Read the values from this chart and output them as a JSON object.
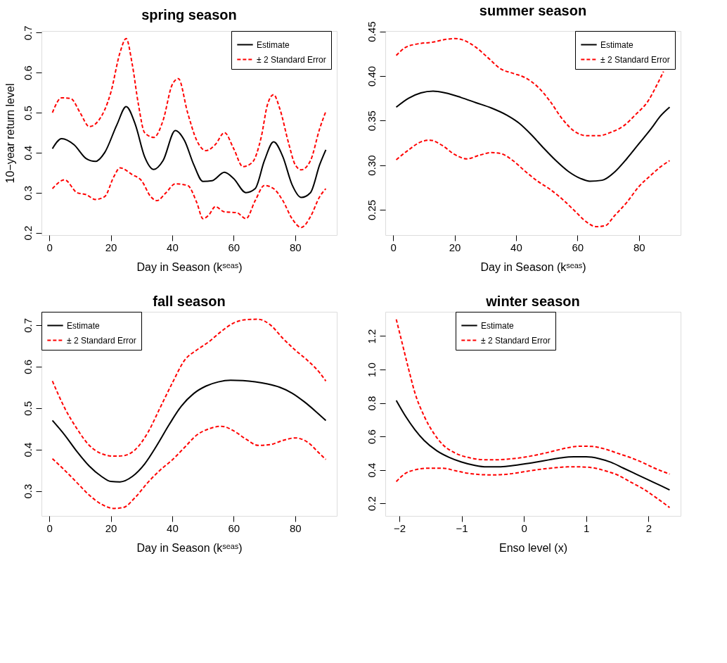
{
  "chart_data": [
    {
      "type": "line",
      "title": "spring season",
      "xlabel": "Day in Season (kˢᵉᵃˢ)",
      "ylabel": "10−year return level",
      "xlim": [
        -2.56,
        93.56
      ],
      "ylim": [
        0.194,
        0.704
      ],
      "xticks": [
        0,
        20,
        40,
        60,
        80
      ],
      "yticks": [
        0.2,
        0.3,
        0.4,
        0.5,
        0.6,
        0.7
      ],
      "legend": "top right",
      "grid": false,
      "series": [
        {
          "name": "Estimate",
          "color": "#000000",
          "line_style": "solid",
          "x": [
            1,
            4,
            8,
            12,
            15,
            18,
            22,
            25,
            28,
            31,
            34,
            37,
            41,
            44,
            47,
            50,
            53,
            57,
            60,
            64,
            67,
            70,
            73,
            76,
            79,
            82,
            85,
            88,
            90
          ],
          "values": [
            0.41,
            0.435,
            0.42,
            0.385,
            0.378,
            0.4,
            0.47,
            0.515,
            0.47,
            0.39,
            0.358,
            0.38,
            0.455,
            0.43,
            0.37,
            0.328,
            0.33,
            0.351,
            0.335,
            0.3,
            0.31,
            0.38,
            0.427,
            0.39,
            0.32,
            0.288,
            0.3,
            0.37,
            0.407
          ]
        },
        {
          "name": "± 2 Standard Error",
          "color": "#ff0000",
          "line_style": "dashed",
          "x": [
            1,
            4,
            7,
            10,
            13,
            16,
            20,
            23,
            25,
            27,
            29,
            31,
            34,
            37,
            40,
            42,
            45,
            48,
            51,
            54,
            57,
            60,
            63,
            66,
            69,
            71,
            73,
            75,
            78,
            80,
            82,
            85,
            88,
            90
          ],
          "values": [
            0.5,
            0.537,
            0.535,
            0.5,
            0.465,
            0.48,
            0.55,
            0.65,
            0.685,
            0.62,
            0.52,
            0.45,
            0.438,
            0.48,
            0.57,
            0.585,
            0.5,
            0.43,
            0.405,
            0.42,
            0.45,
            0.41,
            0.365,
            0.375,
            0.44,
            0.52,
            0.545,
            0.51,
            0.42,
            0.37,
            0.357,
            0.38,
            0.46,
            0.503
          ]
        },
        {
          "color": "#ff0000",
          "line_style": "dashed",
          "x": [
            1,
            5,
            9,
            12,
            15,
            18,
            21,
            23,
            27,
            30,
            33,
            35,
            38,
            41,
            45,
            48,
            50,
            52,
            54,
            57,
            61,
            64,
            67,
            70,
            73,
            76,
            79,
            82,
            85,
            88,
            90
          ],
          "values": [
            0.31,
            0.332,
            0.3,
            0.295,
            0.283,
            0.29,
            0.34,
            0.362,
            0.345,
            0.33,
            0.29,
            0.28,
            0.3,
            0.322,
            0.318,
            0.275,
            0.235,
            0.245,
            0.265,
            0.252,
            0.25,
            0.235,
            0.28,
            0.318,
            0.31,
            0.28,
            0.235,
            0.213,
            0.24,
            0.29,
            0.31
          ]
        }
      ]
    },
    {
      "type": "line",
      "title": "summer season",
      "xlabel": "Day in Season (kˢᵉᵃˢ)",
      "xlim": [
        -2.56,
        93.56
      ],
      "ylim": [
        0.2215,
        0.4505
      ],
      "xticks": [
        0,
        20,
        40,
        60,
        80
      ],
      "yticks": [
        0.25,
        {
          "value": 0.3,
          "label": "0.30"
        },
        0.35,
        {
          "value": 0.4,
          "label": "0.40"
        },
        0.45
      ],
      "legend": "top right",
      "grid": false,
      "series": [
        {
          "name": "Estimate",
          "color": "#000000",
          "line_style": "solid",
          "x": [
            1,
            5,
            9,
            13,
            17,
            22,
            27,
            32,
            37,
            41,
            45,
            49,
            53,
            57,
            61,
            64,
            68,
            72,
            76,
            80,
            84,
            87,
            90
          ],
          "values": [
            0.365,
            0.375,
            0.381,
            0.383,
            0.381,
            0.376,
            0.37,
            0.364,
            0.356,
            0.347,
            0.334,
            0.319,
            0.305,
            0.293,
            0.285,
            0.282,
            0.283,
            0.292,
            0.307,
            0.324,
            0.341,
            0.355,
            0.365
          ]
        },
        {
          "name": "± 2 Standard Error",
          "color": "#ff0000",
          "line_style": "dashed",
          "x": [
            1,
            4,
            8,
            13,
            17,
            20,
            23,
            27,
            31,
            35,
            39,
            43,
            47,
            51,
            55,
            59,
            63,
            67,
            71,
            75,
            79,
            83,
            86,
            88
          ],
          "values": [
            0.423,
            0.432,
            0.436,
            0.438,
            0.441,
            0.442,
            0.44,
            0.432,
            0.42,
            0.408,
            0.403,
            0.398,
            0.388,
            0.372,
            0.352,
            0.338,
            0.333,
            0.333,
            0.337,
            0.344,
            0.357,
            0.372,
            0.391,
            0.405
          ]
        },
        {
          "color": "#ff0000",
          "line_style": "dashed",
          "x": [
            1,
            5,
            9,
            12,
            16,
            20,
            24,
            28,
            32,
            35,
            39,
            43,
            47,
            51,
            55,
            59,
            63,
            66,
            69,
            72,
            76,
            80,
            84,
            87,
            90
          ],
          "values": [
            0.306,
            0.317,
            0.326,
            0.328,
            0.322,
            0.312,
            0.307,
            0.311,
            0.314,
            0.313,
            0.305,
            0.293,
            0.282,
            0.273,
            0.262,
            0.249,
            0.236,
            0.231,
            0.232,
            0.243,
            0.258,
            0.276,
            0.289,
            0.298,
            0.305
          ]
        }
      ]
    },
    {
      "type": "line",
      "title": "fall season",
      "xlabel": "Day in Season (kˢᵉᵃˢ)",
      "xlim": [
        -2.56,
        93.56
      ],
      "ylim": [
        0.24,
        0.732
      ],
      "xticks": [
        0,
        20,
        40,
        60,
        80
      ],
      "yticks": [
        0.3,
        0.4,
        0.5,
        0.6,
        0.7
      ],
      "legend": "top left",
      "grid": false,
      "series": [
        {
          "name": "Estimate",
          "color": "#000000",
          "line_style": "solid",
          "x": [
            1,
            5,
            9,
            13,
            17,
            20,
            23,
            27,
            31,
            35,
            39,
            43,
            47,
            51,
            55,
            59,
            63,
            67,
            71,
            75,
            79,
            83,
            87,
            90
          ],
          "values": [
            0.47,
            0.435,
            0.395,
            0.36,
            0.335,
            0.323,
            0.322,
            0.335,
            0.365,
            0.41,
            0.46,
            0.505,
            0.535,
            0.553,
            0.563,
            0.567,
            0.566,
            0.563,
            0.558,
            0.55,
            0.536,
            0.515,
            0.49,
            0.47
          ]
        },
        {
          "name": "± 2 Standard Error",
          "color": "#ff0000",
          "line_style": "dashed",
          "x": [
            1,
            5,
            9,
            13,
            17,
            21,
            24,
            28,
            32,
            36,
            40,
            44,
            48,
            52,
            56,
            60,
            64,
            68,
            72,
            76,
            80,
            84,
            88,
            90
          ],
          "values": [
            0.565,
            0.5,
            0.45,
            0.41,
            0.39,
            0.384,
            0.385,
            0.4,
            0.44,
            0.5,
            0.56,
            0.615,
            0.64,
            0.66,
            0.685,
            0.705,
            0.713,
            0.714,
            0.7,
            0.668,
            0.64,
            0.615,
            0.585,
            0.565
          ]
        },
        {
          "color": "#ff0000",
          "line_style": "dashed",
          "x": [
            1,
            5,
            9,
            13,
            17,
            21,
            24,
            28,
            32,
            36,
            40,
            44,
            48,
            52,
            56,
            60,
            64,
            68,
            72,
            76,
            80,
            84,
            88,
            90
          ],
          "values": [
            0.378,
            0.35,
            0.32,
            0.29,
            0.268,
            0.258,
            0.26,
            0.285,
            0.32,
            0.35,
            0.375,
            0.405,
            0.435,
            0.45,
            0.456,
            0.445,
            0.425,
            0.41,
            0.412,
            0.422,
            0.428,
            0.418,
            0.39,
            0.376
          ]
        }
      ]
    },
    {
      "type": "line",
      "title": "winter season",
      "xlabel": "Enso level (x)",
      "xlim": [
        -2.226,
        2.516
      ],
      "ylim": [
        0.125,
        1.345
      ],
      "xticks": [
        -2,
        -1,
        0,
        1,
        2
      ],
      "yticks": [
        0.2,
        0.4,
        0.6,
        0.8,
        {
          "value": 1.0,
          "label": "1.0"
        },
        1.2
      ],
      "legend": "top",
      "grid": false,
      "series": [
        {
          "name": "Estimate",
          "color": "#000000",
          "line_style": "solid",
          "x": [
            -2.05,
            -1.9,
            -1.75,
            -1.6,
            -1.4,
            -1.2,
            -1.0,
            -0.8,
            -0.6,
            -0.4,
            -0.2,
            0,
            0.2,
            0.4,
            0.6,
            0.8,
            1.0,
            1.2,
            1.4,
            1.6,
            1.8,
            2.0,
            2.2,
            2.34
          ],
          "values": [
            0.815,
            0.72,
            0.64,
            0.575,
            0.515,
            0.475,
            0.447,
            0.428,
            0.418,
            0.418,
            0.425,
            0.435,
            0.447,
            0.46,
            0.472,
            0.478,
            0.478,
            0.468,
            0.445,
            0.41,
            0.375,
            0.34,
            0.305,
            0.28
          ]
        },
        {
          "name": "± 2 Standard Error",
          "color": "#ff0000",
          "line_style": "dashed",
          "x": [
            -2.05,
            -1.95,
            -1.85,
            -1.75,
            -1.6,
            -1.45,
            -1.3,
            -1.1,
            -0.9,
            -0.7,
            -0.5,
            -0.3,
            -0.1,
            0.1,
            0.3,
            0.5,
            0.7,
            0.9,
            1.1,
            1.3,
            1.5,
            1.7,
            1.9,
            2.1,
            2.34
          ],
          "values": [
            1.3,
            1.15,
            1.0,
            0.86,
            0.72,
            0.62,
            0.55,
            0.5,
            0.475,
            0.462,
            0.46,
            0.463,
            0.47,
            0.482,
            0.497,
            0.515,
            0.532,
            0.542,
            0.54,
            0.525,
            0.5,
            0.475,
            0.445,
            0.41,
            0.375
          ]
        },
        {
          "color": "#ff0000",
          "line_style": "dashed",
          "x": [
            -2.05,
            -1.9,
            -1.75,
            -1.55,
            -1.3,
            -1.1,
            -0.9,
            -0.7,
            -0.5,
            -0.3,
            -0.1,
            0.1,
            0.3,
            0.5,
            0.7,
            0.9,
            1.1,
            1.3,
            1.5,
            1.7,
            1.9,
            2.1,
            2.34
          ],
          "values": [
            0.33,
            0.38,
            0.4,
            0.41,
            0.41,
            0.395,
            0.38,
            0.372,
            0.37,
            0.373,
            0.383,
            0.395,
            0.405,
            0.413,
            0.418,
            0.418,
            0.413,
            0.395,
            0.37,
            0.33,
            0.29,
            0.24,
            0.175
          ]
        }
      ]
    }
  ]
}
